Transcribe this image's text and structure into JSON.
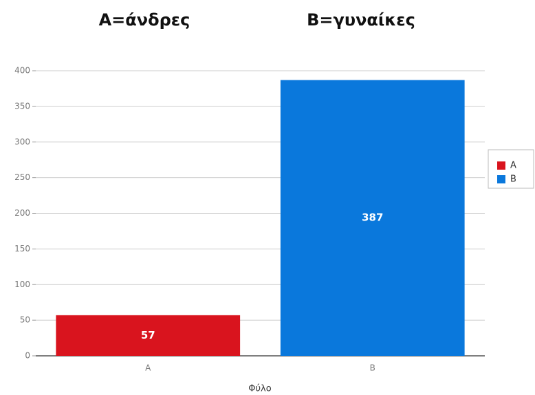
{
  "chart_data": {
    "type": "bar",
    "annotations": [
      "A=άνδρες",
      "B=γυναίκες"
    ],
    "x_label": "Φύλο",
    "categories": [
      "A",
      "B"
    ],
    "values": [
      57,
      387
    ],
    "colors": [
      "#d9141e",
      "#0a78dc"
    ],
    "ylim": [
      0,
      400
    ],
    "yticks": [
      0,
      50,
      100,
      150,
      200,
      250,
      300,
      350,
      400
    ],
    "grid": true,
    "legend": "right"
  }
}
